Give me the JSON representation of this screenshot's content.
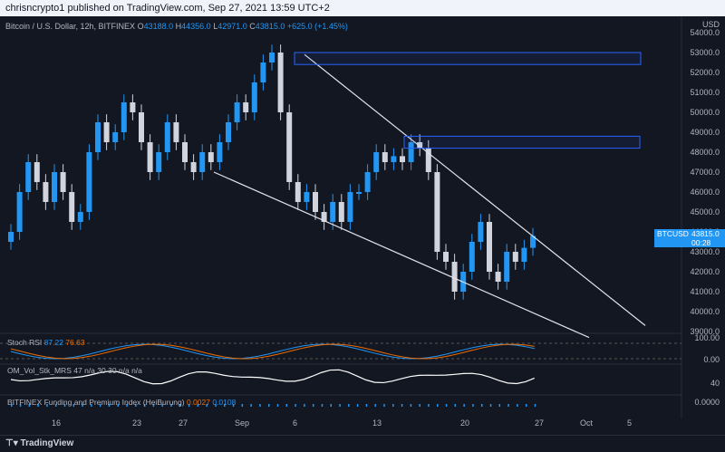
{
  "topbar": {
    "text": "chrisncrypto1 published on TradingView.com, Sep 27, 2021 13:59 UTC+2"
  },
  "legend": {
    "symbol": "Bitcoin / U.S. Dollar, 12h, BITFINEX",
    "o_label": "O",
    "o": "43188.0",
    "h_label": "H",
    "h": "44356.0",
    "l_label": "L",
    "l": "42971.0",
    "c_label": "C",
    "c": "43815.0",
    "change": "+625.0 (+1.45%)"
  },
  "price_axis": {
    "currency": "USD",
    "ticks": [
      "54000.0",
      "53000.0",
      "52000.0",
      "51000.0",
      "50000.0",
      "49000.0",
      "48000.0",
      "47000.0",
      "46000.0",
      "45000.0",
      "44000.0",
      "43000.0",
      "42000.0",
      "41000.0",
      "40000.0",
      "39000.0"
    ]
  },
  "btc_tag": {
    "symbol": "BTCUSD",
    "price": "43815.0",
    "countdown": "00:28"
  },
  "indicators": {
    "stoch": {
      "name": "Stoch RSI",
      "k": "87.22",
      "d": "76.63",
      "ticks": [
        "100.00",
        "0.00"
      ]
    },
    "vol": {
      "name": "OM_Vol_Stk_MRS",
      "v1": "47",
      "rest": "n/a 30 30 n/a n/a",
      "ticks": [
        "40"
      ]
    },
    "funding": {
      "name": "BITFINEX Funding and Premium Index (HeiBurung)",
      "v1": "0.0027",
      "v2": "0.0108",
      "ticks": [
        "0.0000"
      ]
    }
  },
  "x_axis": [
    "16",
    "23",
    "27",
    "Sep",
    "6",
    "13",
    "20",
    "27",
    "Oct",
    "5"
  ],
  "footer": {
    "brand": "TradingView"
  },
  "colors": {
    "up": "#2196f3",
    "down": "#d1d4dc",
    "trendline": "#e0e3eb",
    "box": "#2962ff"
  }
}
